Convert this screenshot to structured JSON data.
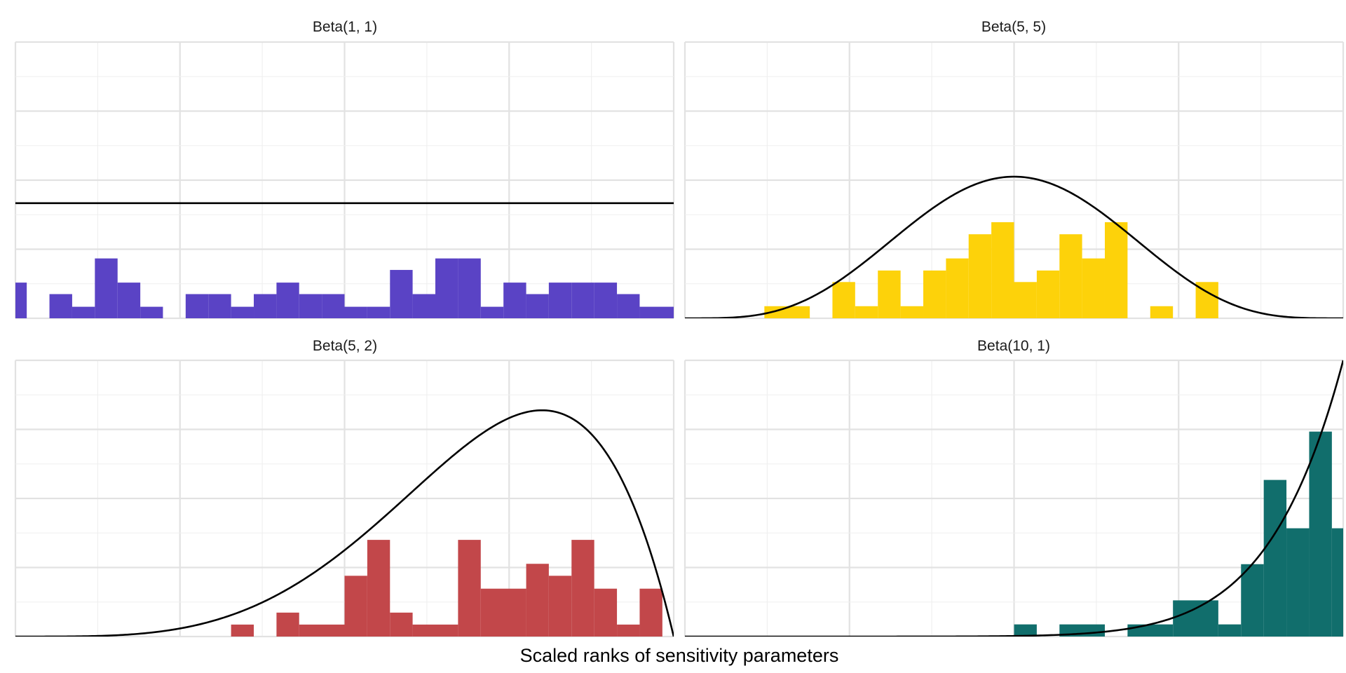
{
  "figure": {
    "xlabel": "Scaled ranks of sensitivity parameters"
  },
  "chart_data": [
    {
      "type": "bar",
      "title": "Beta(1, 1)",
      "color": "#5A43C5",
      "xlim": [
        0,
        1
      ],
      "ylim": [
        0,
        2.4
      ],
      "bin_width": 0.0345,
      "bins": [
        {
          "x0": 0.0,
          "x1": 0.0172,
          "density": 0.31
        },
        {
          "x0": 0.0517,
          "x1": 0.0862,
          "density": 0.21
        },
        {
          "x0": 0.0862,
          "x1": 0.1207,
          "density": 0.1
        },
        {
          "x0": 0.1207,
          "x1": 0.1552,
          "density": 0.52
        },
        {
          "x0": 0.1552,
          "x1": 0.1897,
          "density": 0.31
        },
        {
          "x0": 0.1897,
          "x1": 0.2241,
          "density": 0.1
        },
        {
          "x0": 0.2586,
          "x1": 0.2931,
          "density": 0.21
        },
        {
          "x0": 0.2931,
          "x1": 0.3276,
          "density": 0.21
        },
        {
          "x0": 0.3276,
          "x1": 0.3621,
          "density": 0.1
        },
        {
          "x0": 0.3621,
          "x1": 0.3966,
          "density": 0.21
        },
        {
          "x0": 0.3966,
          "x1": 0.431,
          "density": 0.31
        },
        {
          "x0": 0.431,
          "x1": 0.4655,
          "density": 0.21
        },
        {
          "x0": 0.4655,
          "x1": 0.5,
          "density": 0.21
        },
        {
          "x0": 0.5,
          "x1": 0.5345,
          "density": 0.1
        },
        {
          "x0": 0.5345,
          "x1": 0.569,
          "density": 0.1
        },
        {
          "x0": 0.569,
          "x1": 0.6034,
          "density": 0.42
        },
        {
          "x0": 0.6034,
          "x1": 0.6379,
          "density": 0.21
        },
        {
          "x0": 0.6379,
          "x1": 0.6724,
          "density": 0.52
        },
        {
          "x0": 0.6724,
          "x1": 0.7069,
          "density": 0.52
        },
        {
          "x0": 0.7069,
          "x1": 0.7414,
          "density": 0.1
        },
        {
          "x0": 0.7414,
          "x1": 0.7759,
          "density": 0.31
        },
        {
          "x0": 0.7759,
          "x1": 0.8103,
          "density": 0.21
        },
        {
          "x0": 0.8103,
          "x1": 0.8448,
          "density": 0.31
        },
        {
          "x0": 0.8448,
          "x1": 0.8793,
          "density": 0.31
        },
        {
          "x0": 0.8793,
          "x1": 0.9138,
          "density": 0.31
        },
        {
          "x0": 0.9138,
          "x1": 0.9483,
          "density": 0.21
        },
        {
          "x0": 0.9483,
          "x1": 1.0,
          "density": 0.1
        }
      ],
      "density_curve": {
        "distribution": "beta",
        "alpha": 1,
        "beta": 1
      },
      "grid": true
    },
    {
      "type": "bar",
      "title": "Beta(5, 5)",
      "color": "#FDD20A",
      "xlim": [
        0,
        1
      ],
      "ylim": [
        0,
        4.8
      ],
      "bin_width": 0.0345,
      "bins": [
        {
          "x0": 0.1207,
          "x1": 0.1897,
          "density": 0.21
        },
        {
          "x0": 0.2241,
          "x1": 0.2586,
          "density": 0.63
        },
        {
          "x0": 0.2586,
          "x1": 0.2931,
          "density": 0.21
        },
        {
          "x0": 0.2931,
          "x1": 0.3276,
          "density": 0.83
        },
        {
          "x0": 0.3276,
          "x1": 0.3621,
          "density": 0.21
        },
        {
          "x0": 0.3621,
          "x1": 0.3966,
          "density": 0.83
        },
        {
          "x0": 0.3966,
          "x1": 0.431,
          "density": 1.04
        },
        {
          "x0": 0.431,
          "x1": 0.4655,
          "density": 1.46
        },
        {
          "x0": 0.4655,
          "x1": 0.5,
          "density": 1.67
        },
        {
          "x0": 0.5,
          "x1": 0.5345,
          "density": 0.63
        },
        {
          "x0": 0.5345,
          "x1": 0.569,
          "density": 0.83
        },
        {
          "x0": 0.569,
          "x1": 0.6034,
          "density": 1.46
        },
        {
          "x0": 0.6034,
          "x1": 0.6379,
          "density": 1.04
        },
        {
          "x0": 0.6379,
          "x1": 0.6724,
          "density": 1.67
        },
        {
          "x0": 0.7069,
          "x1": 0.7414,
          "density": 0.21
        },
        {
          "x0": 0.7759,
          "x1": 0.8103,
          "density": 0.63
        }
      ],
      "density_curve": {
        "distribution": "beta",
        "alpha": 5,
        "beta": 5
      },
      "grid": true
    },
    {
      "type": "bar",
      "title": "Beta(5, 2)",
      "color": "#C2474A",
      "xlim": [
        0,
        1
      ],
      "ylim": [
        0,
        3.0
      ],
      "bin_width": 0.0345,
      "bins": [
        {
          "x0": 0.3276,
          "x1": 0.3621,
          "density": 0.13
        },
        {
          "x0": 0.3966,
          "x1": 0.431,
          "density": 0.26
        },
        {
          "x0": 0.431,
          "x1": 0.5,
          "density": 0.13
        },
        {
          "x0": 0.5,
          "x1": 0.5345,
          "density": 0.66
        },
        {
          "x0": 0.5345,
          "x1": 0.569,
          "density": 1.05
        },
        {
          "x0": 0.569,
          "x1": 0.6034,
          "density": 0.26
        },
        {
          "x0": 0.6034,
          "x1": 0.6724,
          "density": 0.13
        },
        {
          "x0": 0.6724,
          "x1": 0.7069,
          "density": 1.05
        },
        {
          "x0": 0.7069,
          "x1": 0.7759,
          "density": 0.52
        },
        {
          "x0": 0.7759,
          "x1": 0.8103,
          "density": 0.79
        },
        {
          "x0": 0.8103,
          "x1": 0.8448,
          "density": 0.66
        },
        {
          "x0": 0.8448,
          "x1": 0.8793,
          "density": 1.05
        },
        {
          "x0": 0.8793,
          "x1": 0.9138,
          "density": 0.52
        },
        {
          "x0": 0.9138,
          "x1": 0.9483,
          "density": 0.13
        },
        {
          "x0": 0.9483,
          "x1": 0.9828,
          "density": 0.52
        }
      ],
      "density_curve": {
        "distribution": "beta",
        "alpha": 5,
        "beta": 2
      },
      "grid": true
    },
    {
      "type": "bar",
      "title": "Beta(10, 1)",
      "color": "#116E6C",
      "xlim": [
        0,
        1
      ],
      "ylim": [
        0,
        10.0
      ],
      "bin_width": 0.0345,
      "bins": [
        {
          "x0": 0.5,
          "x1": 0.5345,
          "density": 0.44
        },
        {
          "x0": 0.569,
          "x1": 0.6379,
          "density": 0.44
        },
        {
          "x0": 0.6724,
          "x1": 0.7414,
          "density": 0.44
        },
        {
          "x0": 0.7414,
          "x1": 0.8103,
          "density": 1.31
        },
        {
          "x0": 0.8103,
          "x1": 0.8448,
          "density": 0.44
        },
        {
          "x0": 0.8448,
          "x1": 0.8793,
          "density": 2.62
        },
        {
          "x0": 0.8793,
          "x1": 0.9138,
          "density": 5.67
        },
        {
          "x0": 0.9138,
          "x1": 0.9483,
          "density": 3.92
        },
        {
          "x0": 0.9483,
          "x1": 0.9828,
          "density": 7.42
        },
        {
          "x0": 0.9828,
          "x1": 1.0,
          "density": 3.92
        }
      ],
      "density_curve": {
        "distribution": "beta",
        "alpha": 10,
        "beta": 1
      },
      "grid": true
    }
  ]
}
